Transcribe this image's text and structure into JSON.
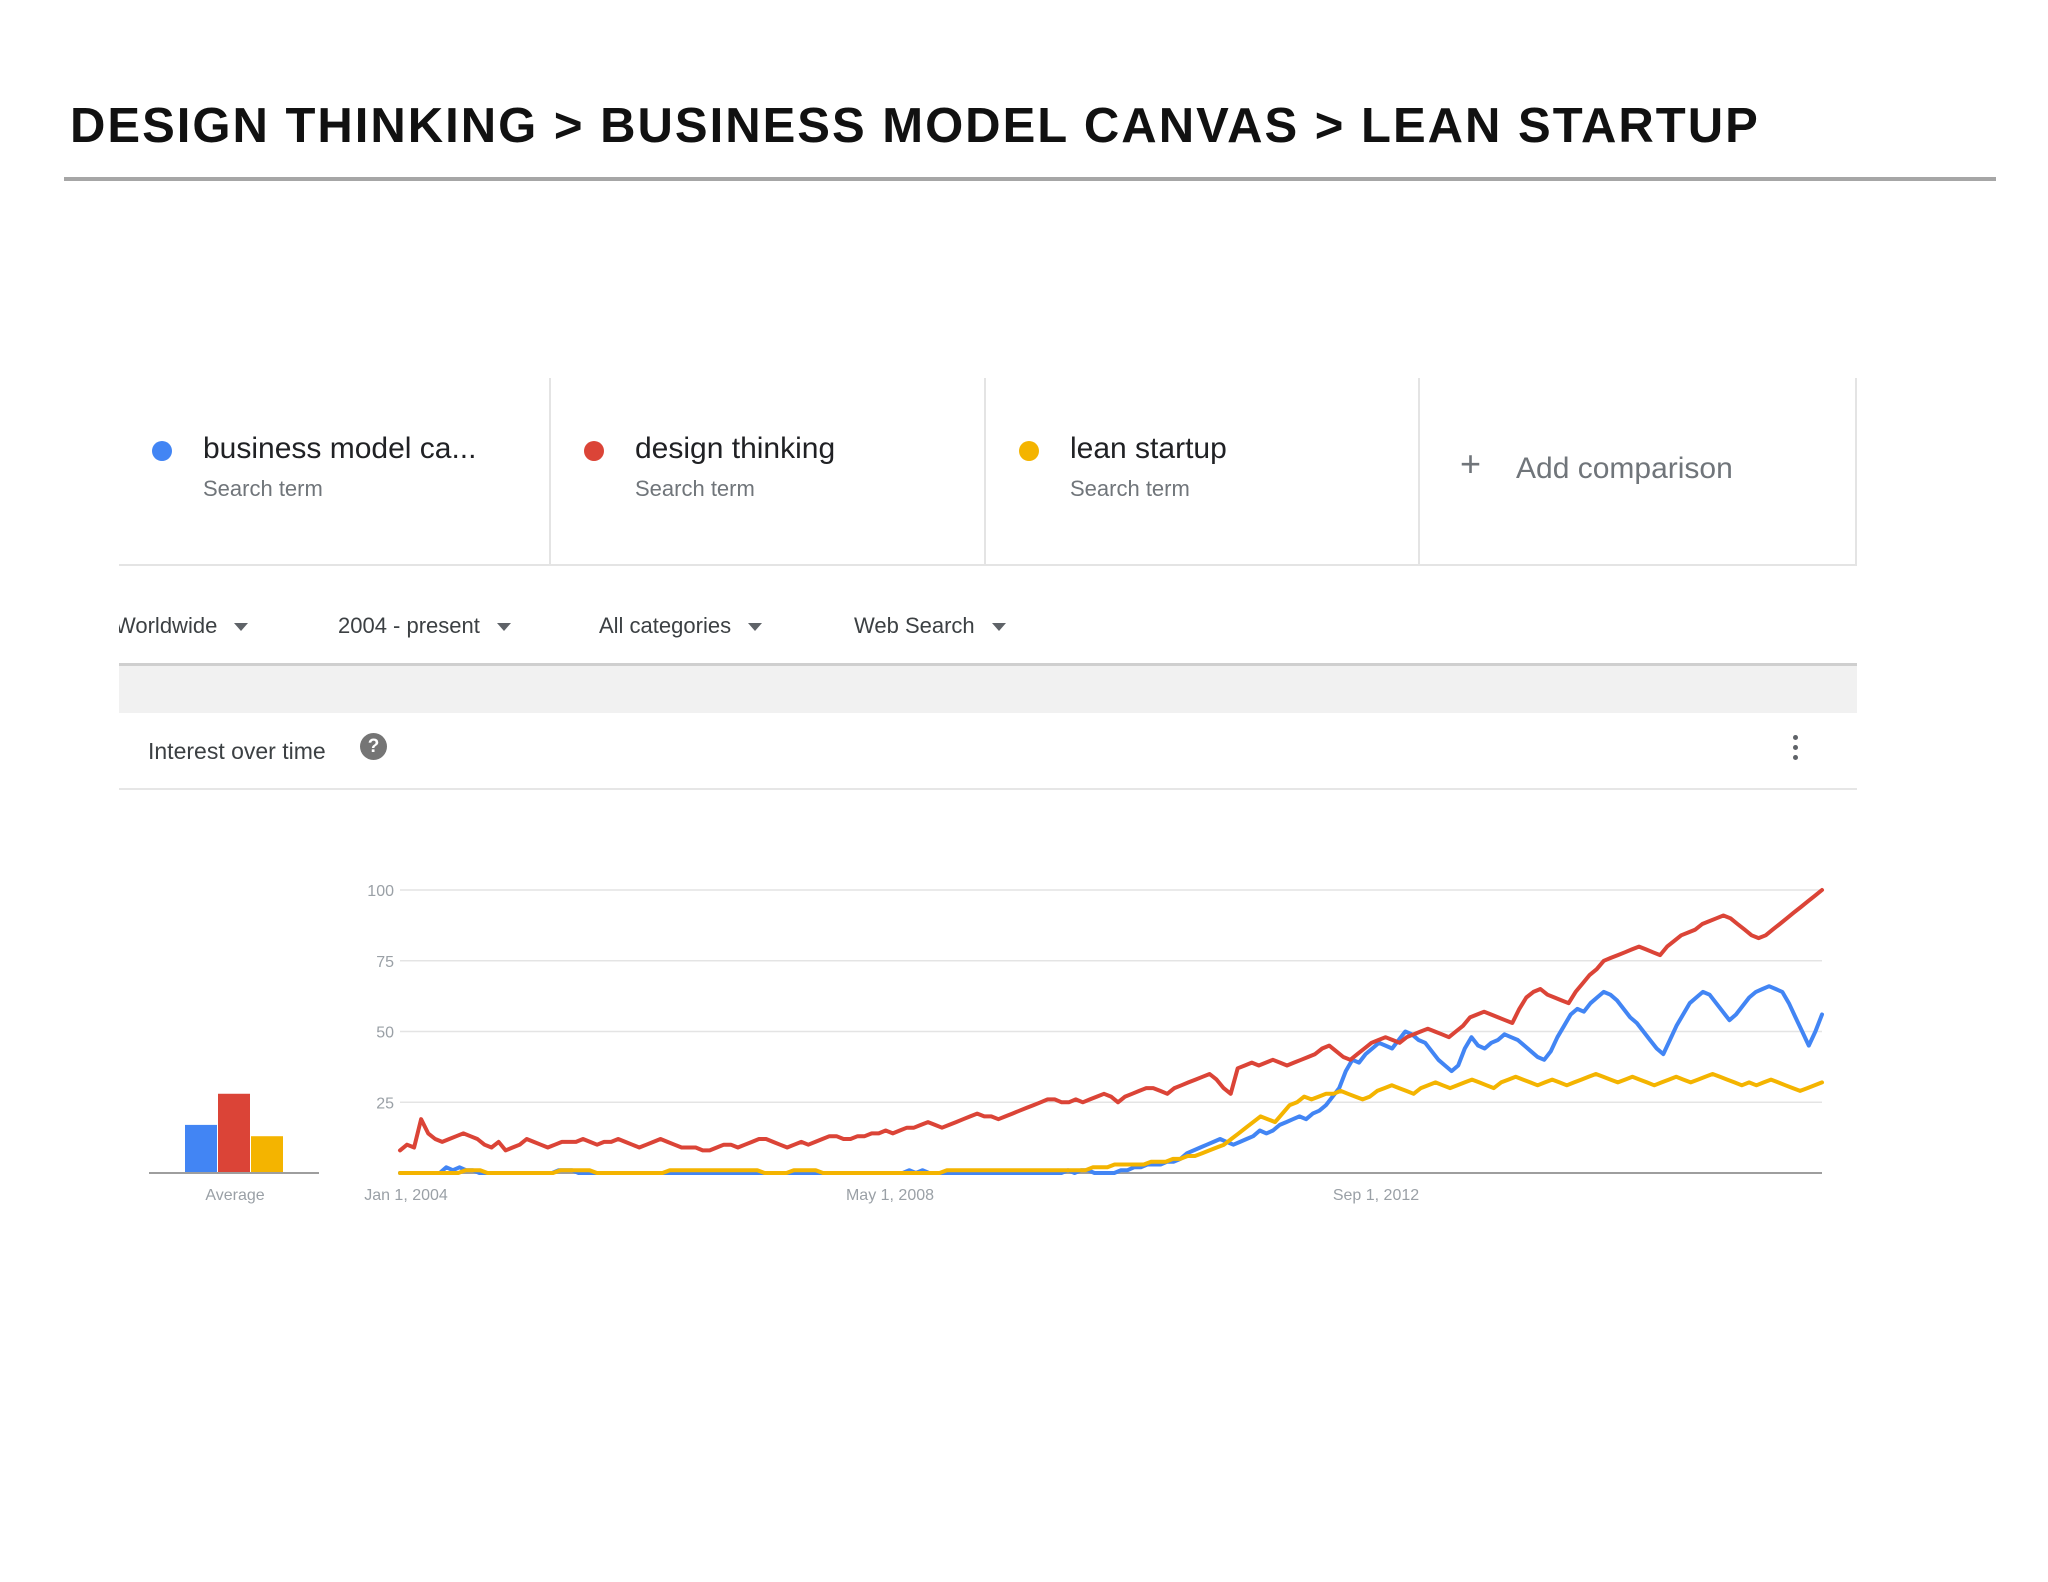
{
  "slide": {
    "title": "DESIGN THINKING > BUSINESS MODEL CANVAS > LEAN STARTUP"
  },
  "terms": [
    {
      "name": "business model ca...",
      "sub": "Search term",
      "color": "#4285f4"
    },
    {
      "name": "design thinking",
      "sub": "Search term",
      "color": "#db4437"
    },
    {
      "name": "lean startup",
      "sub": "Search term",
      "color": "#f4b400"
    }
  ],
  "add_comparison": {
    "icon": "plus-icon",
    "label": "Add comparison"
  },
  "filters": [
    {
      "label": "Worldwide"
    },
    {
      "label": "2004 - present"
    },
    {
      "label": "All categories"
    },
    {
      "label": "Web Search"
    }
  ],
  "card": {
    "title": "Interest over time",
    "help_icon": "question-icon",
    "menu_icon": "more-vert-icon"
  },
  "chart_data": {
    "type": "line",
    "x_ticks": [
      "Jan 1, 2004",
      "May 1, 2008",
      "Sep 1, 2012"
    ],
    "x_range": [
      "2004-01",
      "2016-08"
    ],
    "y_ticks": [
      "100",
      "75",
      "50",
      "25"
    ],
    "ylim": [
      0,
      100
    ],
    "grid": true,
    "average": {
      "label": "Average",
      "values": [
        17,
        28,
        13
      ]
    },
    "series": [
      {
        "name": "business model ca...",
        "color": "#4285f4",
        "values": [
          0,
          0,
          0,
          0,
          0,
          0,
          0,
          2,
          1,
          2,
          1,
          1,
          0,
          0,
          0,
          0,
          0,
          0,
          0,
          0,
          0,
          0,
          0,
          0,
          1,
          1,
          1,
          0,
          0,
          0,
          0,
          0,
          0,
          0,
          0,
          0,
          0,
          0,
          0,
          0,
          0,
          0,
          0,
          0,
          0,
          0,
          0,
          0,
          0,
          0,
          0,
          0,
          0,
          0,
          0,
          0,
          0,
          0,
          0,
          0,
          0,
          0,
          0,
          0,
          0,
          0,
          0,
          0,
          0,
          0,
          0,
          0,
          0,
          0,
          0,
          0,
          0,
          1,
          0,
          1,
          0,
          0,
          0,
          0,
          0,
          0,
          0,
          0,
          0,
          0,
          0,
          0,
          0,
          0,
          0,
          0,
          0,
          0,
          0,
          0,
          0,
          1,
          0,
          1,
          1,
          0,
          0,
          0,
          0,
          1,
          1,
          2,
          2,
          3,
          3,
          3,
          4,
          4,
          5,
          7,
          8,
          9,
          10,
          11,
          12,
          11,
          10,
          11,
          12,
          13,
          15,
          14,
          15,
          17,
          18,
          19,
          20,
          19,
          21,
          22,
          24,
          27,
          30,
          36,
          40,
          39,
          42,
          44,
          46,
          45,
          44,
          47,
          50,
          49,
          47,
          46,
          43,
          40,
          38,
          36,
          38,
          44,
          48,
          45,
          44,
          46,
          47,
          49,
          48,
          47,
          45,
          43,
          41,
          40,
          43,
          48,
          52,
          56,
          58,
          57,
          60,
          62,
          64,
          63,
          61,
          58,
          55,
          53,
          50,
          47,
          44,
          42,
          47,
          52,
          56,
          60,
          62,
          64,
          63,
          60,
          57,
          54,
          56,
          59,
          62,
          64,
          65,
          66,
          65,
          64,
          60,
          55,
          50,
          45,
          50,
          56
        ]
      },
      {
        "name": "design thinking",
        "color": "#db4437",
        "values": [
          8,
          10,
          9,
          19,
          14,
          12,
          11,
          12,
          13,
          14,
          13,
          12,
          10,
          9,
          11,
          8,
          9,
          10,
          12,
          11,
          10,
          9,
          10,
          11,
          11,
          11,
          12,
          11,
          10,
          11,
          11,
          12,
          11,
          10,
          9,
          10,
          11,
          12,
          11,
          10,
          9,
          9,
          9,
          8,
          8,
          9,
          10,
          10,
          9,
          10,
          11,
          12,
          12,
          11,
          10,
          9,
          10,
          11,
          10,
          11,
          12,
          13,
          13,
          12,
          12,
          13,
          13,
          14,
          14,
          15,
          14,
          15,
          16,
          16,
          17,
          18,
          17,
          16,
          17,
          18,
          19,
          20,
          21,
          20,
          20,
          19,
          20,
          21,
          22,
          23,
          24,
          25,
          26,
          26,
          25,
          25,
          26,
          25,
          26,
          27,
          28,
          27,
          25,
          27,
          28,
          29,
          30,
          30,
          29,
          28,
          30,
          31,
          32,
          33,
          34,
          35,
          33,
          30,
          28,
          37,
          38,
          39,
          38,
          39,
          40,
          39,
          38,
          39,
          40,
          41,
          42,
          44,
          45,
          43,
          41,
          40,
          42,
          44,
          46,
          47,
          48,
          47,
          46,
          48,
          49,
          50,
          51,
          50,
          49,
          48,
          50,
          52,
          55,
          56,
          57,
          56,
          55,
          54,
          53,
          58,
          62,
          64,
          65,
          63,
          62,
          61,
          60,
          64,
          67,
          70,
          72,
          75,
          76,
          77,
          78,
          79,
          80,
          79,
          78,
          77,
          80,
          82,
          84,
          85,
          86,
          88,
          89,
          90,
          91,
          90,
          88,
          86,
          84,
          83,
          84,
          86,
          88,
          90,
          92,
          94,
          96,
          98,
          100
        ]
      },
      {
        "name": "lean startup",
        "color": "#f4b400",
        "values": [
          0,
          0,
          0,
          0,
          0,
          0,
          0,
          0,
          0,
          1,
          1,
          1,
          0,
          0,
          0,
          0,
          0,
          0,
          0,
          0,
          0,
          0,
          1,
          1,
          1,
          1,
          1,
          0,
          0,
          0,
          0,
          0,
          0,
          0,
          0,
          0,
          0,
          1,
          1,
          1,
          1,
          1,
          1,
          1,
          1,
          1,
          1,
          1,
          1,
          1,
          0,
          0,
          0,
          0,
          1,
          1,
          1,
          1,
          0,
          0,
          0,
          0,
          0,
          0,
          0,
          0,
          0,
          0,
          0,
          0,
          0,
          0,
          0,
          0,
          0,
          1,
          1,
          1,
          1,
          1,
          1,
          1,
          1,
          1,
          1,
          1,
          1,
          1,
          1,
          1,
          1,
          1,
          1,
          1,
          1,
          2,
          2,
          2,
          3,
          3,
          3,
          3,
          3,
          4,
          4,
          4,
          5,
          5,
          6,
          6,
          7,
          8,
          9,
          10,
          12,
          14,
          16,
          18,
          20,
          19,
          18,
          21,
          24,
          25,
          27,
          26,
          27,
          28,
          28,
          29,
          28,
          27,
          26,
          27,
          29,
          30,
          31,
          30,
          29,
          28,
          30,
          31,
          32,
          31,
          30,
          31,
          32,
          33,
          32,
          31,
          30,
          32,
          33,
          34,
          33,
          32,
          31,
          32,
          33,
          32,
          31,
          32,
          33,
          34,
          35,
          34,
          33,
          32,
          33,
          34,
          33,
          32,
          31,
          32,
          33,
          34,
          33,
          32,
          33,
          34,
          35,
          34,
          33,
          32,
          31,
          32,
          31,
          32,
          33,
          32,
          31,
          30,
          29,
          30,
          31,
          32
        ]
      }
    ]
  }
}
